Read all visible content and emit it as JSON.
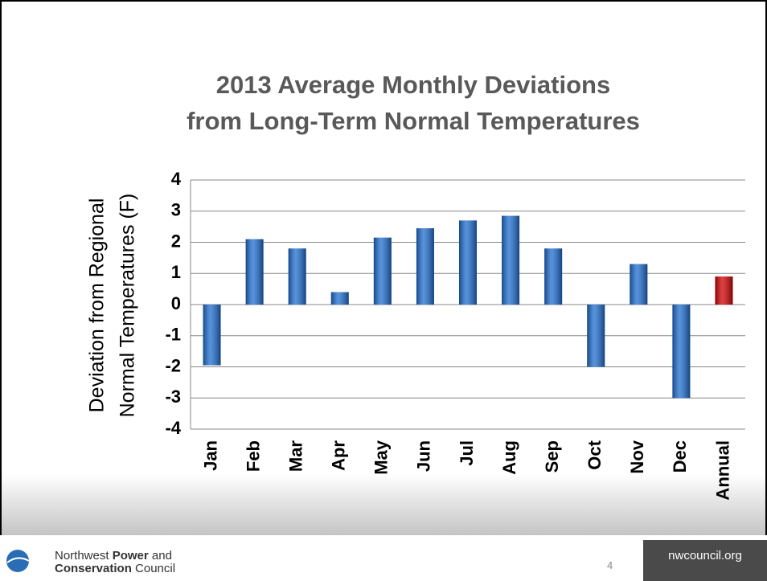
{
  "chart_data": {
    "type": "bar",
    "title": [
      "2013 Average Monthly Deviations",
      "from Long-Term Normal Temperatures"
    ],
    "y_label": [
      "Deviation from Regional",
      "Normal Temperatures (F)"
    ],
    "categories": [
      "Jan",
      "Feb",
      "Mar",
      "Apr",
      "May",
      "Jun",
      "Jul",
      "Aug",
      "Sep",
      "Oct",
      "Nov",
      "Dec",
      "Annual"
    ],
    "values": [
      -1.95,
      2.1,
      1.8,
      0.4,
      2.15,
      2.45,
      2.7,
      2.85,
      1.8,
      -2.0,
      1.3,
      -3.0,
      0.9
    ],
    "colors": [
      "#1f6fd1",
      "#1f6fd1",
      "#1f6fd1",
      "#1f6fd1",
      "#1f6fd1",
      "#1f6fd1",
      "#1f6fd1",
      "#1f6fd1",
      "#1f6fd1",
      "#1f6fd1",
      "#1f6fd1",
      "#1f6fd1",
      "#d40000"
    ],
    "ylim": [
      -4,
      4
    ],
    "yticks": [
      -4,
      -3,
      -2,
      -1,
      0,
      1,
      2,
      3,
      4
    ],
    "grid": true
  },
  "footer": {
    "org": [
      "Northwest",
      "Power",
      "and",
      "Conservation",
      "Council"
    ],
    "page_number": "4",
    "website": "nwcouncil.org"
  }
}
